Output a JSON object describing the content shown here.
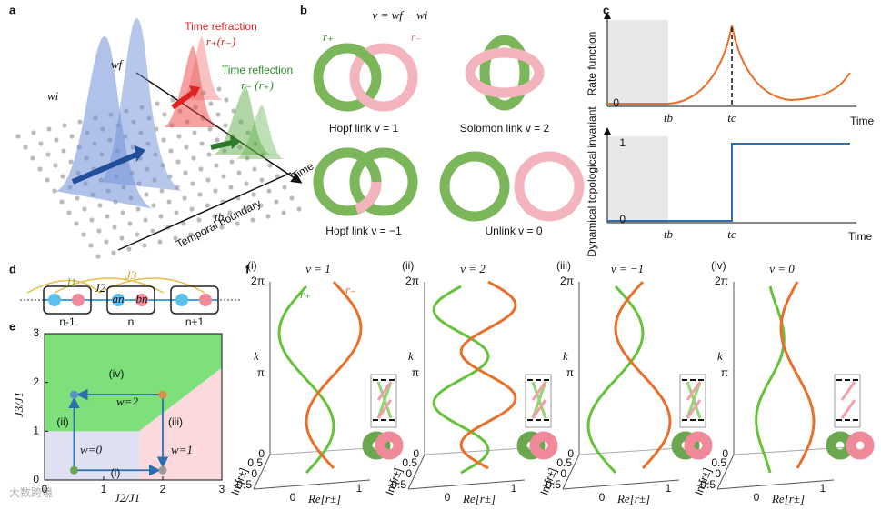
{
  "a": {
    "label": "a",
    "refraction": "Time refraction",
    "refraction_r": "r₊(r₋)",
    "reflection": "Time reflection",
    "reflection_r": "r₋ (r₊)",
    "wf": "wf",
    "wi": "wi",
    "time": "Time",
    "tb": "tb",
    "boundary": "Temporal boundary"
  },
  "b": {
    "label": "b",
    "formula": "v = wf − wi",
    "r_plus": "r₊",
    "r_minus": "r₋",
    "links": [
      "Hopf link v = 1",
      "Solomon link v = 2",
      "Hopf link v = −1",
      "Unlink v = 0"
    ]
  },
  "c": {
    "label": "c",
    "top_ylabel": "Rate function",
    "bottom_ylabel": "Dynamical topological invariant",
    "time": "Time",
    "tb": "tb",
    "tc": "tc",
    "top_tick": "0",
    "bottom_ticks": [
      "1",
      "0"
    ]
  },
  "d": {
    "label": "d",
    "J1": "J1",
    "J2": "J2",
    "J3": "J3",
    "an": "an",
    "bn": "bn",
    "cells": [
      "n-1",
      "n",
      "n+1"
    ]
  },
  "e": {
    "label": "e",
    "xlabel": "J2/J1",
    "ylabel": "J3/J1",
    "xlim": [
      0,
      3
    ],
    "ylim": [
      0,
      3
    ],
    "xticks": [
      0,
      1,
      2,
      3
    ],
    "yticks": [
      0,
      1,
      2,
      3
    ],
    "regions": [
      "w=2",
      "w=0",
      "w=1"
    ],
    "paths": [
      "(i)",
      "(ii)",
      "(iii)",
      "(iv)"
    ]
  },
  "f": {
    "label": "f",
    "k": "k",
    "kticks": [
      "0",
      "π",
      "2π"
    ],
    "im_ticks": [
      "0.5",
      "0",
      "-0.5"
    ],
    "im_label": "Im[r±]",
    "re_ticks": [
      "0",
      "1"
    ],
    "re_label": "Re[r±]",
    "r_plus": "r₊",
    "r_minus": "r₋",
    "subpanels": [
      {
        "label": "(i)",
        "v": "v = 1"
      },
      {
        "label": "(ii)",
        "v": "v = 2"
      },
      {
        "label": "(iii)",
        "v": "v = −1"
      },
      {
        "label": "(iv)",
        "v": "v = 0"
      }
    ]
  },
  "watermark": "大数跨境"
}
